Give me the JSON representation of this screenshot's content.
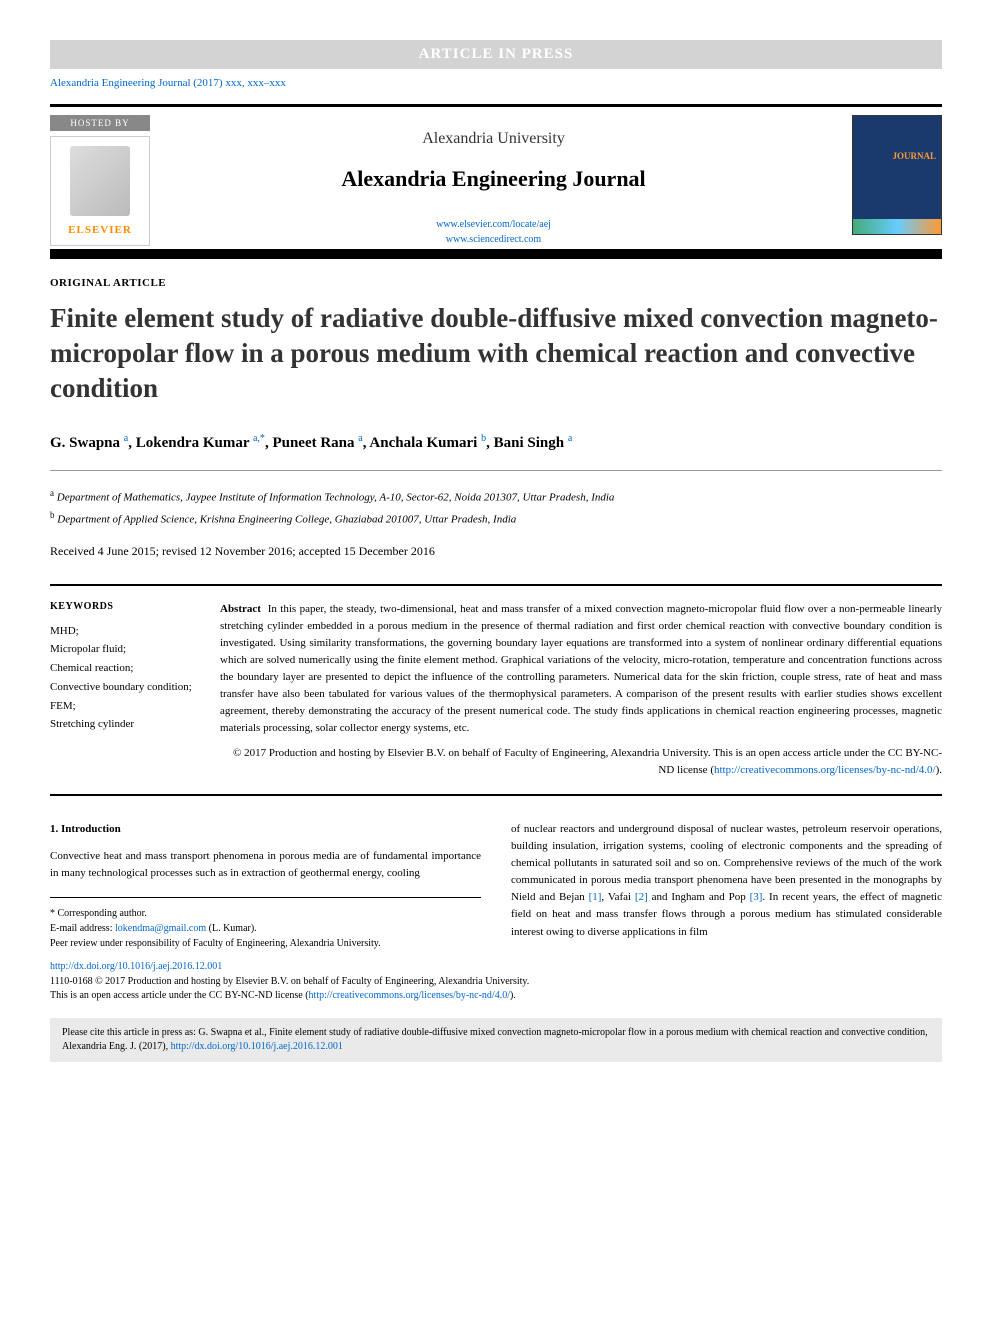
{
  "banner": "ARTICLE IN PRESS",
  "journal_ref": "Alexandria Engineering Journal (2017) xxx, xxx–xxx",
  "hosted_by": "HOSTED BY",
  "elsevier": "ELSEVIER",
  "university": "Alexandria University",
  "journal_name": "Alexandria Engineering Journal",
  "journal_link1": "www.elsevier.com/locate/aej",
  "journal_link2": "www.sciencedirect.com",
  "cover_text": "JOURNAL",
  "article_type": "ORIGINAL ARTICLE",
  "title": "Finite element study of radiative double-diffusive mixed convection magneto-micropolar flow in a porous medium with chemical reaction and convective condition",
  "authors": [
    {
      "name": "G. Swapna",
      "sup": "a"
    },
    {
      "name": "Lokendra Kumar",
      "sup": "a,*"
    },
    {
      "name": "Puneet Rana",
      "sup": "a"
    },
    {
      "name": "Anchala Kumari",
      "sup": "b"
    },
    {
      "name": "Bani Singh",
      "sup": "a"
    }
  ],
  "affiliations": [
    {
      "sup": "a",
      "text": "Department of Mathematics, Jaypee Institute of Information Technology, A-10, Sector-62, Noida 201307, Uttar Pradesh, India"
    },
    {
      "sup": "b",
      "text": "Department of Applied Science, Krishna Engineering College, Ghaziabad 201007, Uttar Pradesh, India"
    }
  ],
  "dates": "Received 4 June 2015; revised 12 November 2016; accepted 15 December 2016",
  "keywords_head": "KEYWORDS",
  "keywords": "MHD;\nMicropolar fluid;\nChemical reaction;\nConvective boundary condition;\nFEM;\nStretching cylinder",
  "abstract_label": "Abstract",
  "abstract_text": "In this paper, the steady, two-dimensional, heat and mass transfer of a mixed convection magneto-micropolar fluid flow over a non-permeable linearly stretching cylinder embedded in a porous medium in the presence of thermal radiation and first order chemical reaction with convective boundary condition is investigated. Using similarity transformations, the governing boundary layer equations are transformed into a system of nonlinear ordinary differential equations which are solved numerically using the finite element method. Graphical variations of the velocity, micro-rotation, temperature and concentration functions across the boundary layer are presented to depict the influence of the controlling parameters. Numerical data for the skin friction, couple stress, rate of heat and mass transfer have also been tabulated for various values of the thermophysical parameters. A comparison of the present results with earlier studies shows excellent agreement, thereby demonstrating the accuracy of the present numerical code. The study finds applications in chemical reaction engineering processes, magnetic materials processing, solar collector energy systems, etc.",
  "copyright": "© 2017 Production and hosting by Elsevier B.V. on behalf of Faculty of Engineering, Alexandria University. This is an open access article under the CC BY-NC-ND license (",
  "cc_link": "http://creativecommons.org/licenses/by-nc-nd/4.0/",
  "cc_close": ").",
  "section_head": "1. Introduction",
  "intro_left": "Convective heat and mass transport phenomena in porous media are of fundamental importance in many technological processes such as in extraction of geothermal energy, cooling",
  "intro_right": "of nuclear reactors and underground disposal of nuclear wastes, petroleum reservoir operations, building insulation, irrigation systems, cooling of electronic components and the spreading of chemical pollutants in saturated soil and so on. Comprehensive reviews of the much of the work communicated in porous media transport phenomena have been presented in the monographs by Nield and Bejan ",
  "ref1": "[1]",
  "intro_right2": ", Vafai ",
  "ref2": "[2]",
  "intro_right3": " and Ingham and Pop ",
  "ref3": "[3]",
  "intro_right4": ". In recent years, the effect of magnetic field on heat and mass transfer flows through a porous medium has stimulated considerable interest owing to diverse applications in film",
  "corresponding": "* Corresponding author.",
  "email_label": "E-mail address: ",
  "email": "lokendma@gmail.com",
  "email_author": " (L. Kumar).",
  "peer_review": "Peer review under responsibility of Faculty of Engineering, Alexandria University.",
  "doi": "http://dx.doi.org/10.1016/j.aej.2016.12.001",
  "issn": "1110-0168 © 2017 Production and hosting by Elsevier B.V. on behalf of Faculty of Engineering, Alexandria University.",
  "open_access": "This is an open access article under the CC BY-NC-ND license (",
  "citation": "Please cite this article in press as: G. Swapna et al., Finite element study of radiative double-diffusive mixed convection magneto-micropolar flow in a porous medium with chemical reaction and convective condition, Alexandria Eng. J. (2017), ",
  "citation_doi": "http://dx.doi.org/10.1016/j.aej.2016.12.001"
}
